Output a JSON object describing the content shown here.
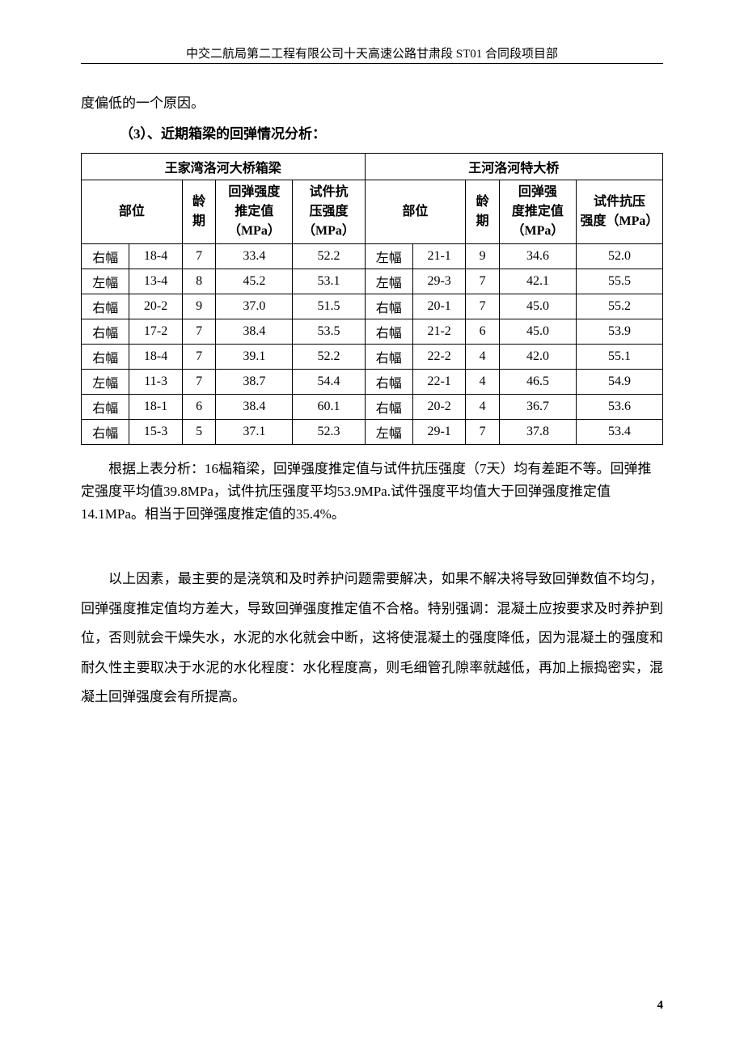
{
  "header": {
    "text": "中交二航局第二工程有限公司十天高速公路甘肃段 ST01 合同段项目部"
  },
  "intro_line": "度偏低的一个原因。",
  "section_heading": "（3）、近期箱梁的回弹情况分析：",
  "table": {
    "group1_title": "王家湾洛河大桥箱梁",
    "group2_title": "王河洛河特大桥",
    "headers": {
      "part": "部位",
      "age": "龄期",
      "rebound": "回弹强度推定值（MPa）",
      "test": "试件抗压强度（MPa）",
      "rebound2": "回弹强度推定值（MPa）",
      "test2": "试件抗压强度（MPa）"
    },
    "rows": [
      {
        "p1a": "右幅",
        "p1b": "18-4",
        "age1": "7",
        "r1": "33.4",
        "t1": "52.2",
        "p2a": "左幅",
        "p2b": "21-1",
        "age2": "9",
        "r2": "34.6",
        "t2": "52.0"
      },
      {
        "p1a": "左幅",
        "p1b": "13-4",
        "age1": "8",
        "r1": "45.2",
        "t1": "53.1",
        "p2a": "左幅",
        "p2b": "29-3",
        "age2": "7",
        "r2": "42.1",
        "t2": "55.5"
      },
      {
        "p1a": "右幅",
        "p1b": "20-2",
        "age1": "9",
        "r1": "37.0",
        "t1": "51.5",
        "p2a": "右幅",
        "p2b": "20-1",
        "age2": "7",
        "r2": "45.0",
        "t2": "55.2"
      },
      {
        "p1a": "右幅",
        "p1b": "17-2",
        "age1": "7",
        "r1": "38.4",
        "t1": "53.5",
        "p2a": "右幅",
        "p2b": "21-2",
        "age2": "6",
        "r2": "45.0",
        "t2": "53.9"
      },
      {
        "p1a": "右幅",
        "p1b": "18-4",
        "age1": "7",
        "r1": "39.1",
        "t1": "52.2",
        "p2a": "右幅",
        "p2b": "22-2",
        "age2": "4",
        "r2": "42.0",
        "t2": "55.1"
      },
      {
        "p1a": "左幅",
        "p1b": "11-3",
        "age1": "7",
        "r1": "38.7",
        "t1": "54.4",
        "p2a": "右幅",
        "p2b": "22-1",
        "age2": "4",
        "r2": "46.5",
        "t2": "54.9"
      },
      {
        "p1a": "右幅",
        "p1b": "18-1",
        "age1": "6",
        "r1": "38.4",
        "t1": "60.1",
        "p2a": "右幅",
        "p2b": "20-2",
        "age2": "4",
        "r2": "36.7",
        "t2": "53.6"
      },
      {
        "p1a": "右幅",
        "p1b": "15-3",
        "age1": "5",
        "r1": "37.1",
        "t1": "52.3",
        "p2a": "左幅",
        "p2b": "29-1",
        "age2": "7",
        "r2": "37.8",
        "t2": "53.4"
      }
    ]
  },
  "analysis_text": "根据上表分析：16榀箱梁，回弹强度推定值与试件抗压强度（7天）均有差距不等。回弹推定强度平均值39.8MPa，试件抗压强度平均53.9MPa.试件强度平均值大于回弹强度推定值14.1MPa。相当于回弹强度推定值的35.4%。",
  "conclusion_text": "以上因素，最主要的是浇筑和及时养护问题需要解决，如果不解决将导致回弹数值不均匀，回弹强度推定值均方差大，导致回弹强度推定值不合格。特别强调：混凝土应按要求及时养护到位，否则就会干燥失水，水泥的水化就会中断，这将使混凝土的强度降低，因为混凝土的强度和耐久性主要取决于水泥的水化程度：水化程度高，则毛细管孔隙率就越低，再加上振捣密实，混凝土回弹强度会有所提高。",
  "page_number": "4"
}
